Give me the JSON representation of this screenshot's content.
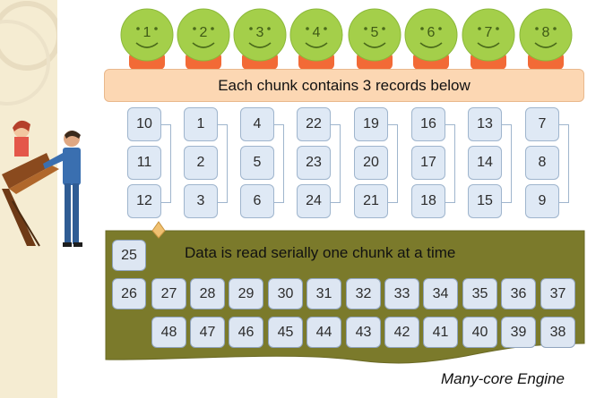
{
  "banner": {
    "text": "Each chunk contains 3 records below"
  },
  "cores": [
    "1",
    "2",
    "3",
    "4",
    "5",
    "6",
    "7",
    "8"
  ],
  "chunks": [
    [
      "10",
      "11",
      "12"
    ],
    [
      "1",
      "2",
      "3"
    ],
    [
      "4",
      "5",
      "6"
    ],
    [
      "22",
      "23",
      "24"
    ],
    [
      "19",
      "20",
      "21"
    ],
    [
      "16",
      "17",
      "18"
    ],
    [
      "13",
      "14",
      "15"
    ],
    [
      "7",
      "8",
      "9"
    ]
  ],
  "engine": {
    "title": "Data is read serially one chunk at a time",
    "label": "Many-core Engine",
    "queue_head": "25",
    "row1": [
      "26",
      "27",
      "28",
      "29",
      "30",
      "31",
      "32",
      "33",
      "34",
      "35",
      "36",
      "37"
    ],
    "row2": [
      "48",
      "47",
      "46",
      "45",
      "44",
      "43",
      "42",
      "41",
      "40",
      "39",
      "38"
    ]
  },
  "colors": {
    "face": "#a4cf4a",
    "face_base": "#f26a36",
    "banner": "#fcd7b3",
    "record": "#dfe9f5",
    "engine": "#7b7a2b"
  }
}
